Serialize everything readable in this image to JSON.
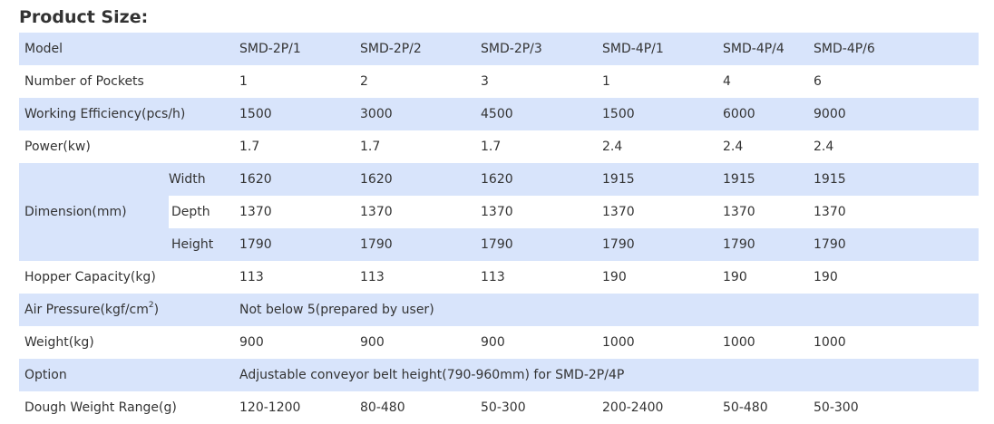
{
  "title": "Product Size:",
  "models": [
    "SMD-2P/1",
    "SMD-2P/2",
    "SMD-2P/3",
    "SMD-4P/1",
    "SMD-4P/4",
    "SMD-4P/6"
  ],
  "labels": {
    "model": "Model",
    "pockets": "Number of Pockets",
    "efficiency": "Working Efficiency(pcs/h)",
    "power": "Power(kw)",
    "dimension": "Dimension(mm)",
    "width": "Width",
    "depth": "Depth",
    "height": "Height",
    "hopper": "Hopper Capacity(kg)",
    "air_pressure_prefix": "Air Pressure(kgf/cm",
    "air_pressure_sup": "2",
    "air_pressure_suffix": ")",
    "weight": "Weight(kg)",
    "option": "Option",
    "dough": "Dough Weight Range(g)"
  },
  "rows": {
    "pockets": [
      "1",
      "2",
      "3",
      "1",
      "4",
      "6"
    ],
    "efficiency": [
      "1500",
      "3000",
      "4500",
      "1500",
      "6000",
      "9000"
    ],
    "power": [
      "1.7",
      "1.7",
      "1.7",
      "2.4",
      "2.4",
      "2.4"
    ],
    "width": [
      "1620",
      "1620",
      "1620",
      "1915",
      "1915",
      "1915"
    ],
    "depth": [
      "1370",
      "1370",
      "1370",
      "1370",
      "1370",
      "1370"
    ],
    "height": [
      "1790",
      "1790",
      "1790",
      "1790",
      "1790",
      "1790"
    ],
    "hopper": [
      "113",
      "113",
      "113",
      "190",
      "190",
      "190"
    ],
    "air_pressure": "Not below 5(prepared by user)",
    "weight": [
      "900",
      "900",
      "900",
      "1000",
      "1000",
      "1000"
    ],
    "option": "Adjustable conveyor belt height(790-960mm) for SMD-2P/4P",
    "dough": [
      "120-1200",
      "80-480",
      "50-300",
      "200-2400",
      "50-480",
      "50-300"
    ]
  },
  "colors": {
    "row_shade": "#d8e4fb",
    "text": "#333333"
  }
}
